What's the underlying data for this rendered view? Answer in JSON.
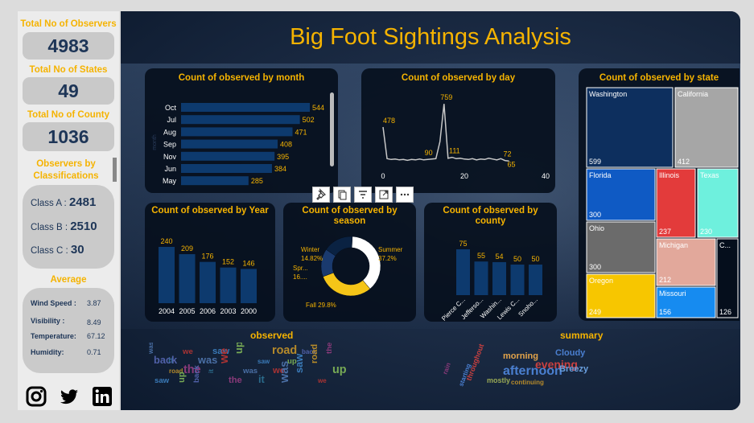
{
  "sidebar": {
    "kpis": [
      {
        "label": "Total No of Observers",
        "value": "4983"
      },
      {
        "label": "Total No of States",
        "value": "49"
      },
      {
        "label": "Total No of County",
        "value": "1036"
      }
    ],
    "classifications": {
      "label": "Observers by Classifications",
      "rows": [
        {
          "name": "Class A :",
          "value": "2481"
        },
        {
          "name": "Class B :",
          "value": "2510"
        },
        {
          "name": "Class C :",
          "value": "30"
        }
      ]
    },
    "average": {
      "label": "Average",
      "rows": [
        {
          "name": "Wind Speed :",
          "value": "3.87"
        },
        {
          "name": "Visibility :",
          "value": "8.49"
        },
        {
          "name": "Temperature:",
          "value": "67.12"
        },
        {
          "name": "Humidity:",
          "value": "0.71"
        }
      ]
    },
    "social": [
      "instagram-icon",
      "twitter-icon",
      "linkedin-icon"
    ]
  },
  "title": "Big Foot Sightings Analysis",
  "colors": {
    "accent": "#f5b301",
    "bar": "#0d3a6e",
    "panel": "#050e1c",
    "label": "#f5b301"
  },
  "wordclouds": {
    "left": {
      "title": "observed",
      "words": [
        "was",
        "we",
        "saw",
        "up",
        "road",
        "back",
        "the",
        "it"
      ]
    },
    "right": {
      "title": "summary",
      "words": [
        "morning",
        "Cloudy",
        "afternoon",
        "evening",
        "Breezy",
        "mostly",
        "throughout",
        "starting",
        "continuing",
        "rain"
      ]
    }
  },
  "chart_data": [
    {
      "type": "bar",
      "orientation": "horizontal",
      "title": "Count of observed by month",
      "ylabel": "month",
      "xlabel": "Count of observed",
      "categories": [
        "Oct",
        "Jul",
        "Aug",
        "Sep",
        "Nov",
        "Jun",
        "May"
      ],
      "values": [
        544,
        502,
        471,
        408,
        395,
        384,
        285
      ]
    },
    {
      "type": "line",
      "title": "Count of observed by day",
      "x": [
        0,
        1,
        2,
        3,
        4,
        5,
        6,
        7,
        8,
        9,
        10,
        11,
        12,
        13,
        14,
        15,
        16,
        17,
        18,
        19,
        20,
        21,
        22,
        23,
        24,
        25,
        26,
        27,
        28,
        29,
        30,
        31
      ],
      "values": [
        478,
        95,
        85,
        90,
        80,
        85,
        75,
        85,
        80,
        90,
        80,
        85,
        90,
        95,
        300,
        759,
        100,
        111,
        95,
        100,
        90,
        85,
        95,
        80,
        90,
        85,
        100,
        90,
        80,
        95,
        72,
        65
      ],
      "xticks": [
        0,
        20,
        40
      ],
      "xlim": [
        0,
        40
      ],
      "labels": [
        {
          "x": 0,
          "text": "478"
        },
        {
          "x": 15,
          "text": "759"
        },
        {
          "x": 12,
          "text": "90"
        },
        {
          "x": 17,
          "text": "111"
        },
        {
          "x": 30,
          "text": "72"
        },
        {
          "x": 31,
          "text": "65"
        }
      ]
    },
    {
      "type": "treemap",
      "title": "Count of observed by state",
      "items": [
        {
          "name": "Washington",
          "value": 599,
          "color": "#0d2f5e"
        },
        {
          "name": "California",
          "value": 412,
          "color": "#a6a6a6"
        },
        {
          "name": "Florida",
          "value": 300,
          "color": "#0f5ac4"
        },
        {
          "name": "Illinois",
          "value": 237,
          "color": "#e33b3b"
        },
        {
          "name": "Texas",
          "value": 230,
          "color": "#6ef0dd"
        },
        {
          "name": "Ohio",
          "value": 300,
          "color": "#6b6b6b"
        },
        {
          "name": "Michigan",
          "value": 212,
          "color": "#e2a89b"
        },
        {
          "name": "C...",
          "value": 126,
          "color": "#050e1c"
        },
        {
          "name": "Oregon",
          "value": 249,
          "color": "#f7c600"
        },
        {
          "name": "Missouri",
          "value": 156,
          "color": "#168bf0"
        }
      ]
    },
    {
      "type": "bar",
      "title": "Count of observed by Year",
      "categories": [
        "2004",
        "2005",
        "2006",
        "2003",
        "2000"
      ],
      "values": [
        240,
        209,
        176,
        152,
        146
      ]
    },
    {
      "type": "pie",
      "donut": true,
      "title": "Count of observed by season",
      "categories": [
        "Summer",
        "Fall",
        "Winter",
        "Spring"
      ],
      "values": [
        37.2,
        29.8,
        14.82,
        16.0
      ],
      "labels": [
        "Summer\n37.2%",
        "Fall 29.8%",
        "Winter\n14.82%",
        "Spr...\n16...."
      ],
      "colors": [
        "#ffffff",
        "#f5c518",
        "#1a3a6e",
        "#0a2242"
      ]
    },
    {
      "type": "bar",
      "title": "Count of observed by county",
      "categories": [
        "Pierce C...",
        "Jefferso...",
        "Washin...",
        "Lewis C...",
        "Snoho..."
      ],
      "values": [
        75,
        55,
        54,
        50,
        50
      ]
    }
  ]
}
